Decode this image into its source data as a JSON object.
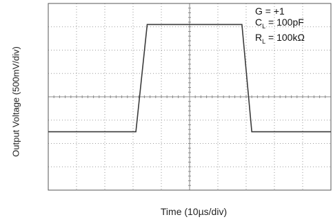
{
  "chart_data": {
    "type": "line",
    "xlabel": "Time (10µs/div)",
    "ylabel": "Output Voltage (500mV/div)",
    "x_unit": "µs",
    "y_unit": "mV",
    "x_divisions": 10,
    "y_divisions": 8,
    "xlim": [
      0,
      100
    ],
    "ylim": [
      0,
      4000
    ],
    "grid": true,
    "annotations": [
      {
        "name": "G",
        "sub": "",
        "value": "= +1"
      },
      {
        "name": "C",
        "sub": "L",
        "value": "= 100pF"
      },
      {
        "name": "R",
        "sub": "L",
        "value": "= 100kΩ"
      }
    ],
    "series": [
      {
        "color": "#3a3a3a",
        "x": [
          0,
          31,
          35,
          68.5,
          72,
          100
        ],
        "y": [
          1250,
          1250,
          3550,
          3550,
          1250,
          1250
        ]
      }
    ]
  }
}
